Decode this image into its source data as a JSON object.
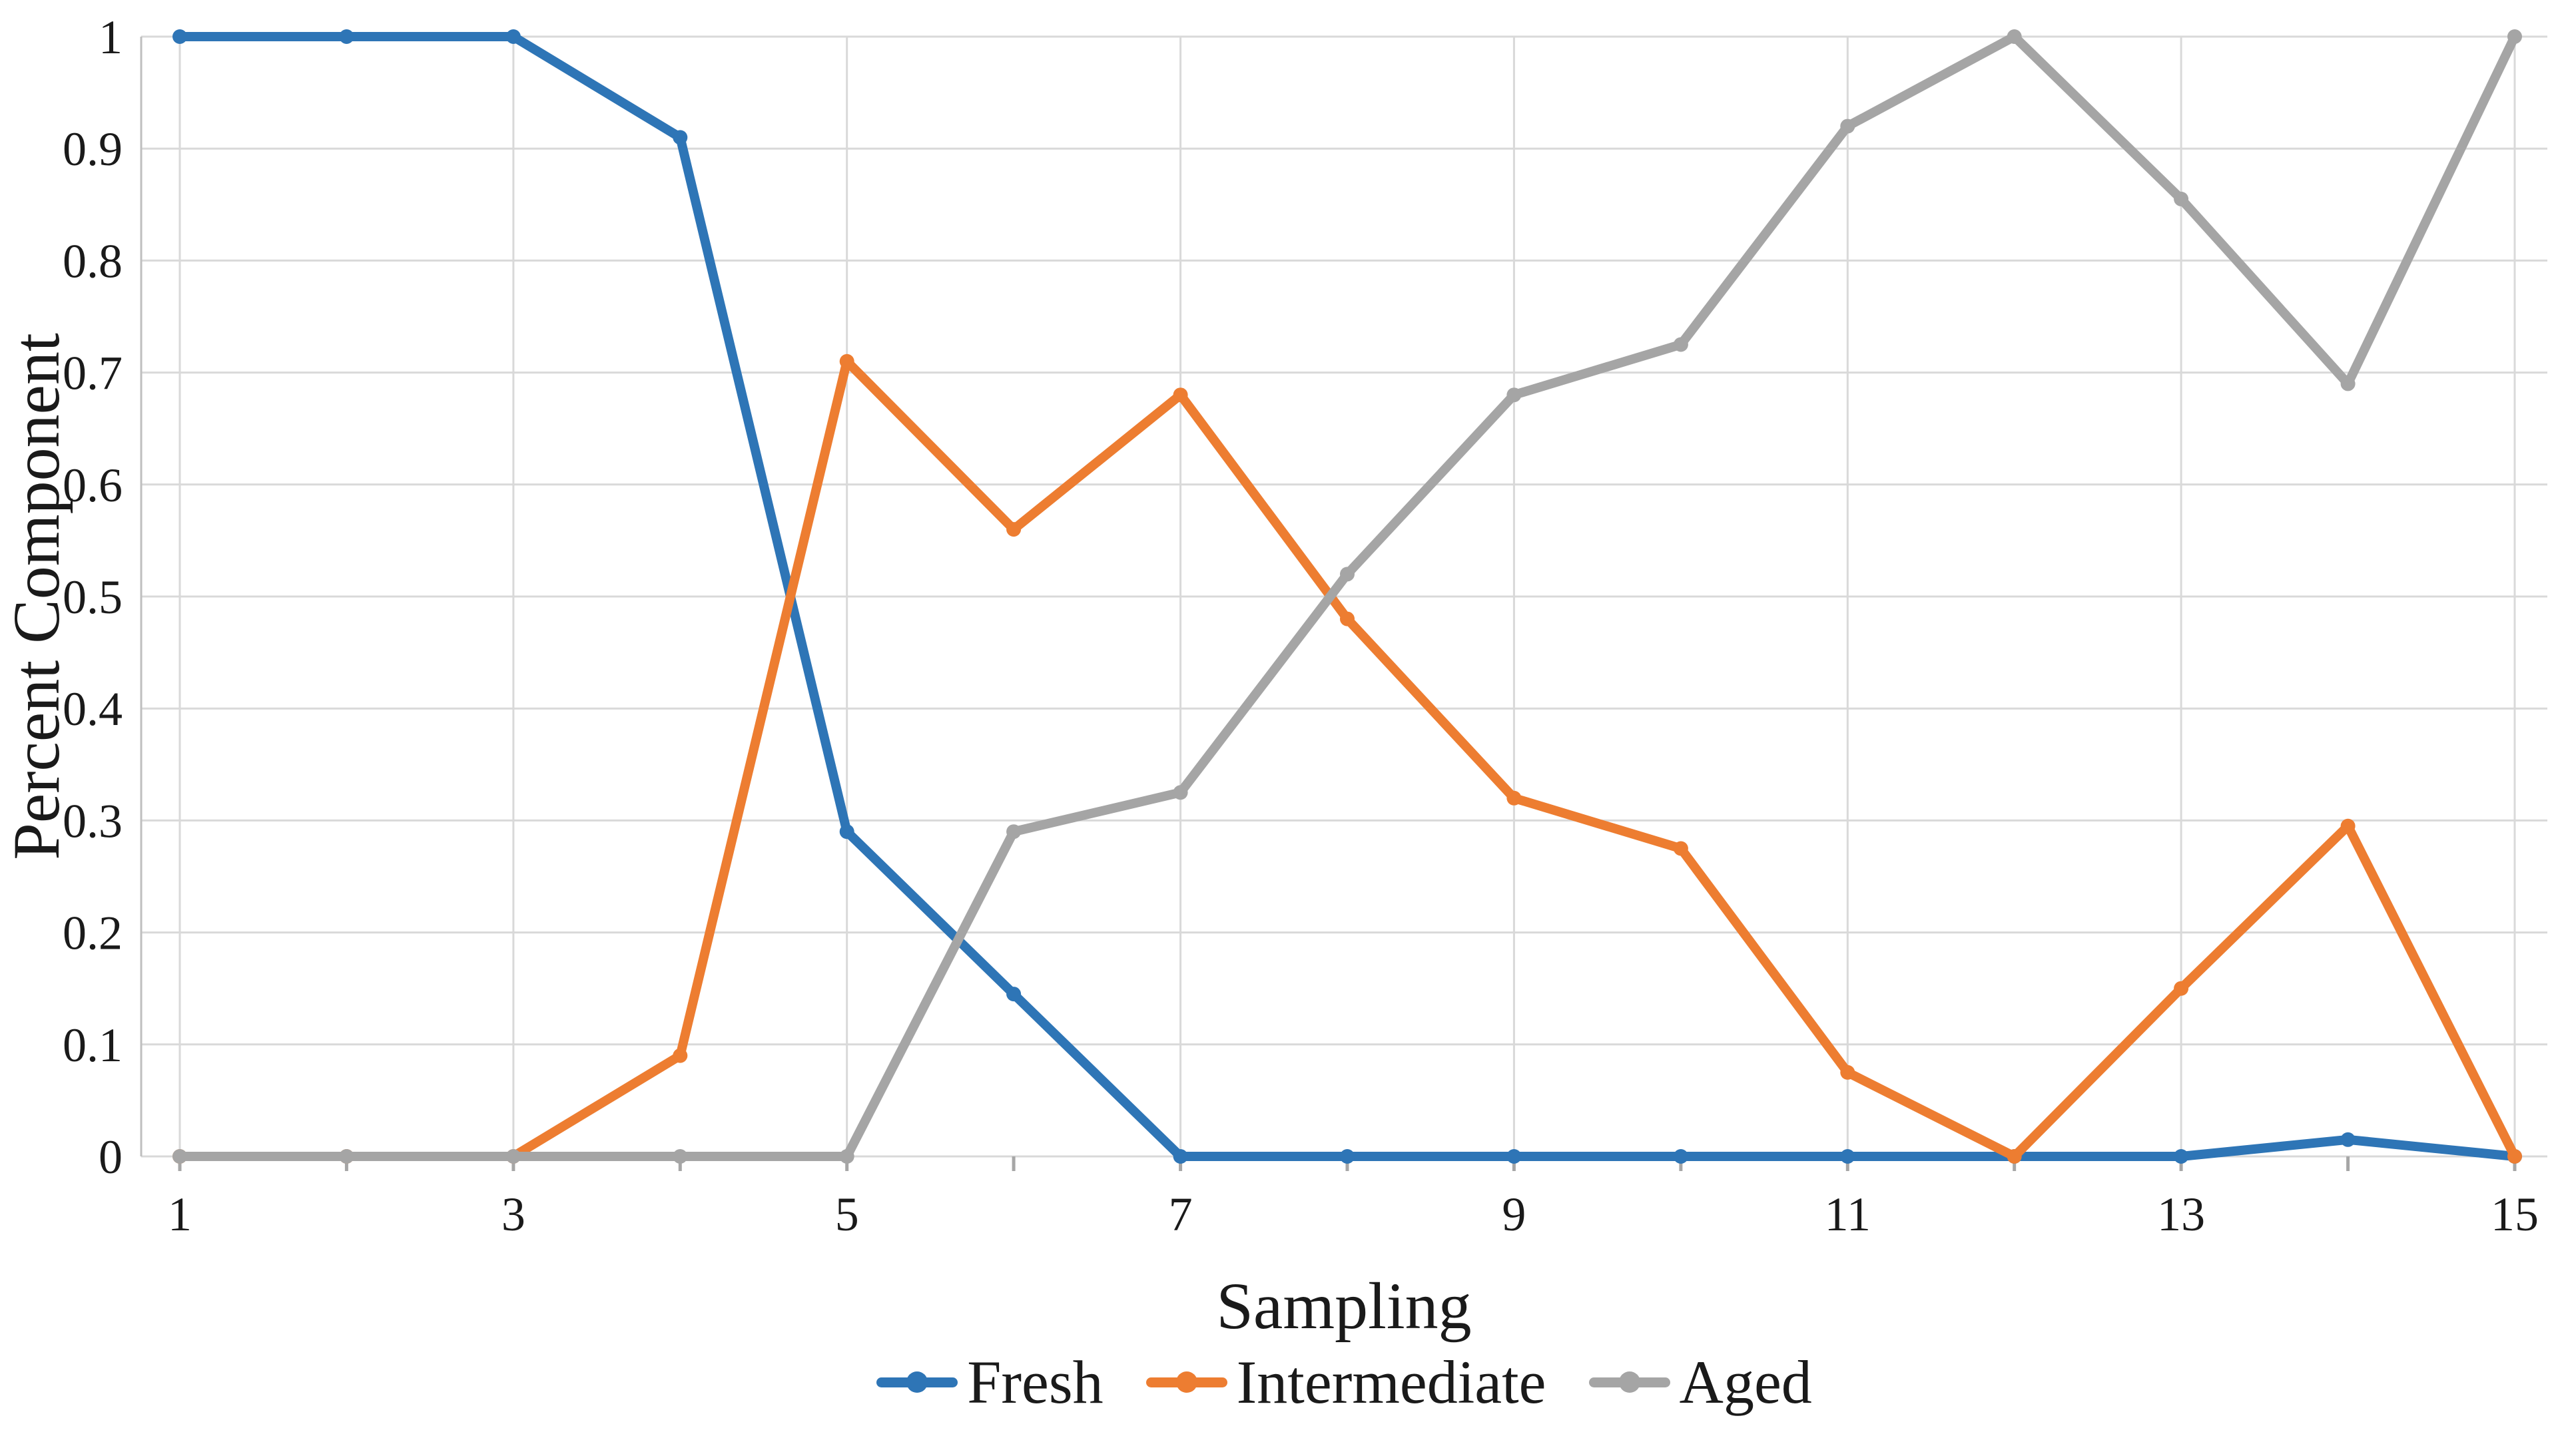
{
  "figure": {
    "background": "#ffffff",
    "text_color": "#1a1a1a"
  },
  "chart_data": {
    "type": "line",
    "title": "",
    "xlabel": "Sampling",
    "ylabel": "Percent Component",
    "x": [
      1,
      2,
      3,
      4,
      5,
      6,
      7,
      8,
      9,
      10,
      11,
      12,
      13,
      14,
      15
    ],
    "x_ticks_labeled": [
      1,
      3,
      5,
      7,
      9,
      11,
      13,
      15
    ],
    "x_tick_labels": [
      "1",
      "3",
      "5",
      "7",
      "9",
      "11",
      "13",
      "15"
    ],
    "y_ticks": [
      0,
      0.1,
      0.2,
      0.3,
      0.4,
      0.5,
      0.6,
      0.7,
      0.8,
      0.9,
      1
    ],
    "y_tick_labels": [
      "0",
      "0.1",
      "0.2",
      "0.3",
      "0.4",
      "0.5",
      "0.6",
      "0.7",
      "0.8",
      "0.9",
      "1"
    ],
    "ylim": [
      0,
      1
    ],
    "grid": true,
    "legend_position": "bottom",
    "marker": "circle",
    "series": [
      {
        "name": "Fresh",
        "color": "#2E75B6",
        "values": [
          1.0,
          1.0,
          1.0,
          0.91,
          0.29,
          0.145,
          0.0,
          0.0,
          0.0,
          0.0,
          0.0,
          0.0,
          0.0,
          0.015,
          0.0
        ]
      },
      {
        "name": "Intermediate",
        "color": "#ED7D31",
        "values": [
          0.0,
          0.0,
          0.0,
          0.09,
          0.71,
          0.56,
          0.68,
          0.48,
          0.32,
          0.275,
          0.075,
          0.0,
          0.15,
          0.295,
          0.0
        ]
      },
      {
        "name": "Aged",
        "color": "#A5A5A5",
        "values": [
          0.0,
          0.0,
          0.0,
          0.0,
          0.0,
          0.29,
          0.325,
          0.52,
          0.68,
          0.725,
          0.92,
          1.0,
          0.855,
          0.69,
          1.0
        ]
      }
    ],
    "style": {
      "gridline_color": "#D9D9D9",
      "axis_line_color": "#BFBFBF",
      "tick_color": "#A6A6A6",
      "line_width": 14,
      "marker_radius": 11
    }
  }
}
